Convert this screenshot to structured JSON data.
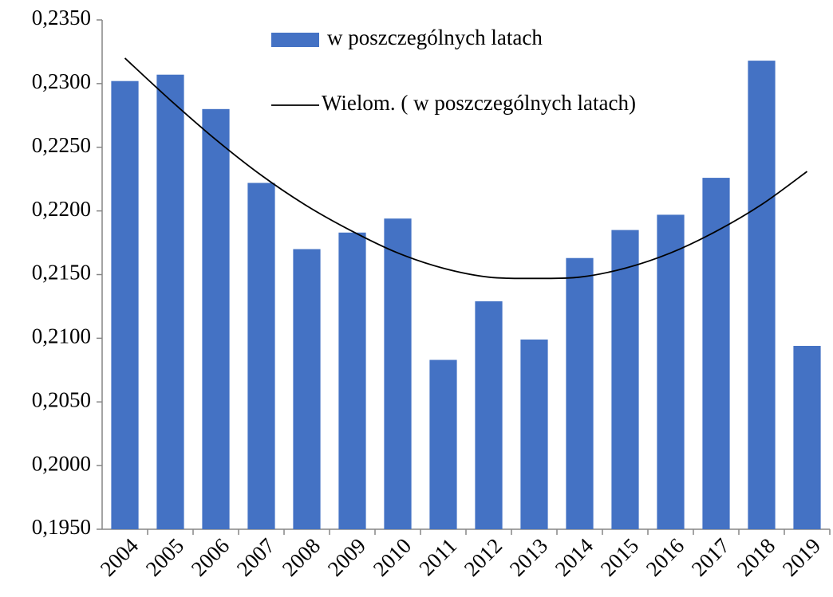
{
  "chart_data": {
    "type": "bar",
    "categories": [
      "2004",
      "2005",
      "2006",
      "2007",
      "2008",
      "2009",
      "2010",
      "2011",
      "2012",
      "2013",
      "2014",
      "2015",
      "2016",
      "2017",
      "2018",
      "2019"
    ],
    "series": [
      {
        "name": "w poszczególnych latach",
        "type": "bar",
        "color": "#4472c4",
        "values": [
          0.2302,
          0.2307,
          0.228,
          0.2222,
          0.217,
          0.2183,
          0.2194,
          0.2083,
          0.2129,
          0.2099,
          0.2163,
          0.2185,
          0.2197,
          0.2226,
          0.2318,
          0.2094
        ]
      },
      {
        "name": "Wielom. ( w poszczególnych latach)",
        "type": "line",
        "color": "#000000",
        "values": [
          0.232,
          0.2287,
          0.2256,
          0.2228,
          0.2204,
          0.2184,
          0.2167,
          0.2155,
          0.2148,
          0.2147,
          0.2148,
          0.2155,
          0.2167,
          0.2184,
          0.2205,
          0.2231
        ]
      }
    ],
    "ylim": [
      0.195,
      0.235
    ],
    "yticks": [
      {
        "value": 0.195,
        "label": "0,1950"
      },
      {
        "value": 0.2,
        "label": "0,2000"
      },
      {
        "value": 0.205,
        "label": "0,2050"
      },
      {
        "value": 0.21,
        "label": "0,2100"
      },
      {
        "value": 0.215,
        "label": "0,2150"
      },
      {
        "value": 0.22,
        "label": "0,2200"
      },
      {
        "value": 0.225,
        "label": "0,2250"
      },
      {
        "value": 0.23,
        "label": "0,2300"
      },
      {
        "value": 0.235,
        "label": "0,2350"
      }
    ],
    "grid": false,
    "legend": "top"
  }
}
